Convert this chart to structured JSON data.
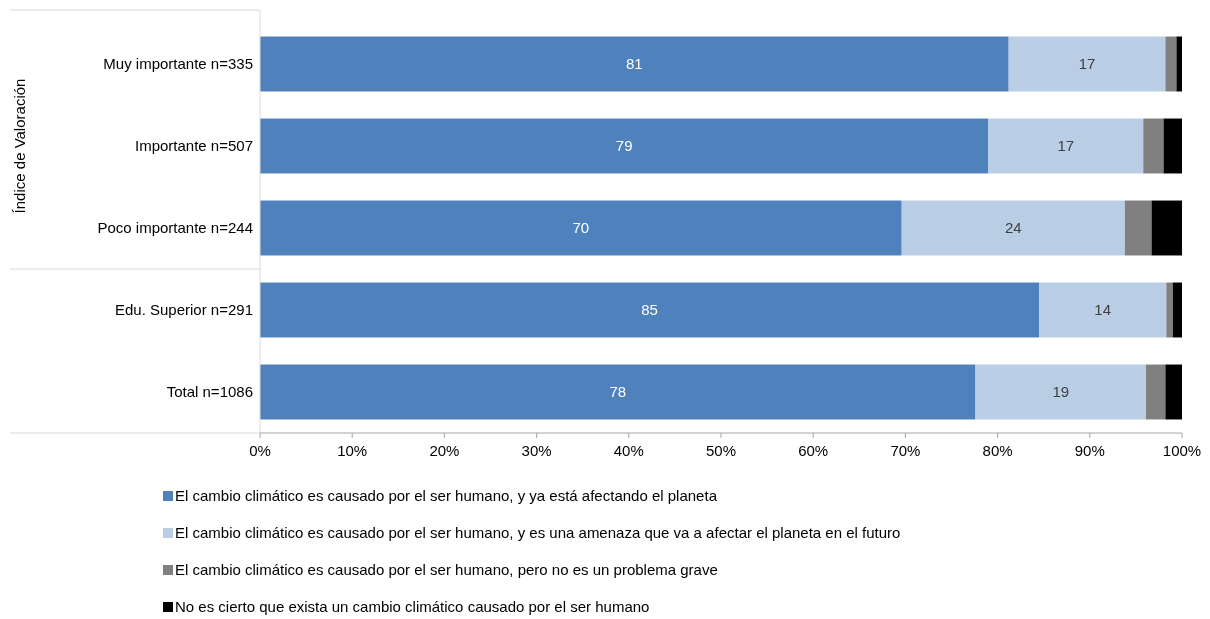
{
  "chart_data": {
    "type": "bar",
    "orientation": "horizontal",
    "stacked": true,
    "ylabel": "Índice de Valoración",
    "categories": [
      "Muy importante n=335",
      "Importante n=507",
      "Poco importante n=244",
      "Edu. Superior n=291",
      "Total n=1086"
    ],
    "series": [
      {
        "name": "El cambio climático es causado por el ser humano, y ya está afectando el planeta",
        "color": "#4f81bd",
        "values": [
          81.2,
          79,
          69.6,
          84.5,
          77.6
        ],
        "value_labels": [
          "81",
          "79",
          "70",
          "85",
          "78"
        ]
      },
      {
        "name": "El cambio climático es causado por el ser humano, y es una amenaza que va a afectar el planeta en el futuro",
        "color": "#b9cde5",
        "values": [
          17,
          16.8,
          24.2,
          13.8,
          18.5
        ],
        "value_labels": [
          "17",
          "17",
          "24",
          "14",
          "19"
        ]
      },
      {
        "name": "El cambio climático es causado por el ser humano, pero no es un problema grave",
        "color": "#808080",
        "values": [
          1.2,
          2.2,
          2.9,
          0.7,
          2.1
        ]
      },
      {
        "name": "No es cierto que exista un cambio climático causado por el ser humano",
        "color": "#000000",
        "values": [
          0.6,
          2,
          3.3,
          1,
          1.8
        ]
      }
    ],
    "xlim": [
      0,
      100
    ],
    "xticks": [
      {
        "value": 0,
        "label": "0%"
      },
      {
        "value": 10,
        "label": "10%"
      },
      {
        "value": 20,
        "label": "20%"
      },
      {
        "value": 30,
        "label": "30%"
      },
      {
        "value": 40,
        "label": "40%"
      },
      {
        "value": 50,
        "label": "50%"
      },
      {
        "value": 60,
        "label": "60%"
      },
      {
        "value": 70,
        "label": "70%"
      },
      {
        "value": 80,
        "label": "80%"
      },
      {
        "value": 90,
        "label": "90%"
      },
      {
        "value": 100,
        "label": "100%"
      }
    ],
    "grid": false,
    "legend": "bottom"
  }
}
